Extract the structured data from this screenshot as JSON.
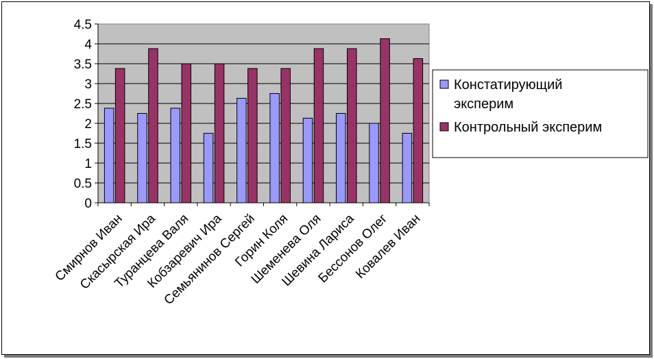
{
  "chart_data": {
    "type": "bar",
    "categories": [
      "Смирнов Иван",
      "Скасырская Ира",
      "Туранцева Валя",
      "Кобзаревич Ира",
      "Семьянинов Сергей",
      "Горин Коля",
      "Шеменева Оля",
      "Шевина Лариса",
      "Бессонов Олег",
      "Ковалев Иван"
    ],
    "series": [
      {
        "name": "Констатирующий эксперим",
        "legend_lines": [
          "Констатирующий",
          "эксперим"
        ],
        "color": "#9999FF",
        "values": [
          2.38,
          2.25,
          2.38,
          1.75,
          2.63,
          2.75,
          2.13,
          2.25,
          2.0,
          1.75
        ]
      },
      {
        "name": "Контрольный эксперим",
        "legend_lines": [
          "Контрольный эксперим"
        ],
        "color": "#993366",
        "values": [
          3.38,
          3.88,
          3.5,
          3.5,
          3.38,
          3.38,
          3.88,
          3.88,
          4.13,
          3.63
        ]
      }
    ],
    "yticks": [
      "0",
      "0.5",
      "1",
      "1.5",
      "2",
      "2.5",
      "3",
      "3.5",
      "4",
      "4.5"
    ],
    "ylim": [
      0,
      4.5
    ],
    "plot_background": "#C0C0C0",
    "grid": true,
    "legend_position": "right",
    "title": "",
    "xlabel": "",
    "ylabel": ""
  }
}
